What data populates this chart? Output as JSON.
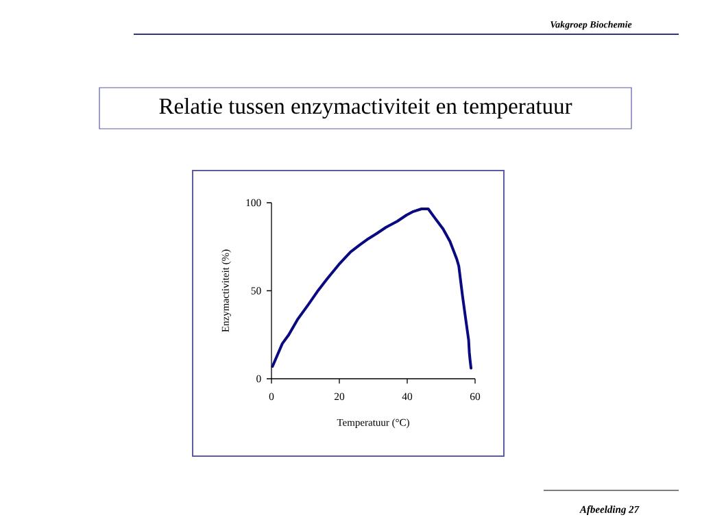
{
  "chart_data": {
    "type": "line",
    "title": "Relatie tussen enzymactiviteit en temperatuur",
    "xlabel": "Temperatuur (°C)",
    "ylabel": "Enzymactiviteit (%)",
    "annotations": [
      "Vakgroep Biochemie",
      "Afbeelding 27"
    ],
    "x": [
      0.3,
      3.2,
      5.1,
      7.8,
      10.8,
      13.5,
      16.5,
      19.9,
      23.3,
      26.0,
      28.5,
      31.0,
      33.7,
      37.1,
      39.8,
      41.8,
      44.2,
      46.2,
      47.9,
      50.6,
      52.6,
      54.6,
      55.2,
      56.3,
      57.3,
      58.1,
      58.3,
      58.5,
      58.8
    ],
    "series": [
      {
        "color": "#0a0a80",
        "values": [
          7,
          20,
          25,
          34,
          42,
          49.5,
          57,
          65,
          72,
          76,
          79.5,
          82.5,
          86,
          89.5,
          93,
          95,
          96.5,
          96.5,
          92,
          85,
          78,
          68,
          64,
          47,
          33,
          22,
          15,
          11,
          6
        ]
      }
    ],
    "xlim": [
      0,
      60
    ],
    "ylim": [
      0,
      100
    ],
    "xticks": [
      0,
      20,
      40,
      60
    ],
    "yticks": [
      0,
      50,
      100
    ],
    "marker": "none",
    "line_style": "solid"
  }
}
